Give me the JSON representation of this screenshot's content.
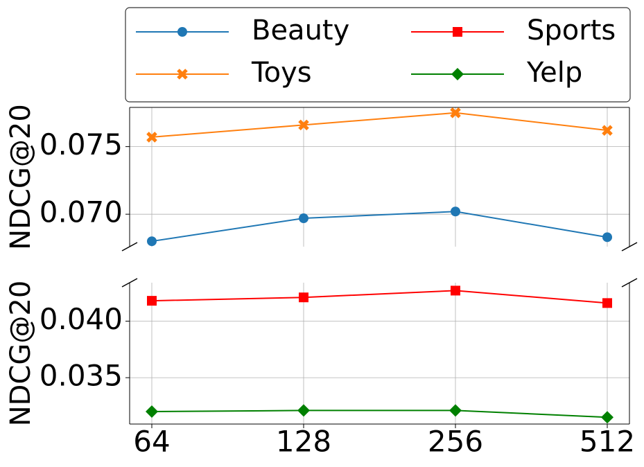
{
  "chart_data": [
    {
      "type": "line",
      "y_label": "NDCG@20",
      "series": [
        {
          "name": "Beauty",
          "color": "#1f77b4",
          "marker": "circle",
          "values": [
            0.068,
            0.0697,
            0.0702,
            0.0683
          ]
        },
        {
          "name": "Toys",
          "color": "#ff7f0e",
          "marker": "x",
          "values": [
            0.0757,
            0.0766,
            0.0775,
            0.0762
          ]
        }
      ],
      "ylim": [
        0.0676,
        0.0779
      ],
      "yticks": [
        {
          "value": 0.07,
          "label": "0.070"
        },
        0.075
      ],
      "grid": true
    },
    {
      "type": "line",
      "y_label": "NDCG@20",
      "categories": [
        "64",
        "128",
        "256",
        "512"
      ],
      "series": [
        {
          "name": "Sports",
          "color": "#ff0000",
          "marker": "square",
          "values": [
            0.0418,
            0.0421,
            0.0427,
            0.0416
          ]
        },
        {
          "name": "Yelp",
          "color": "#008000",
          "marker": "diamond",
          "values": [
            0.032,
            0.0321,
            0.0321,
            0.0315
          ]
        }
      ],
      "ylim": [
        0.0309,
        0.0434
      ],
      "yticks": [
        0.035,
        {
          "value": 0.04,
          "label": "0.040"
        }
      ],
      "grid": true
    }
  ]
}
